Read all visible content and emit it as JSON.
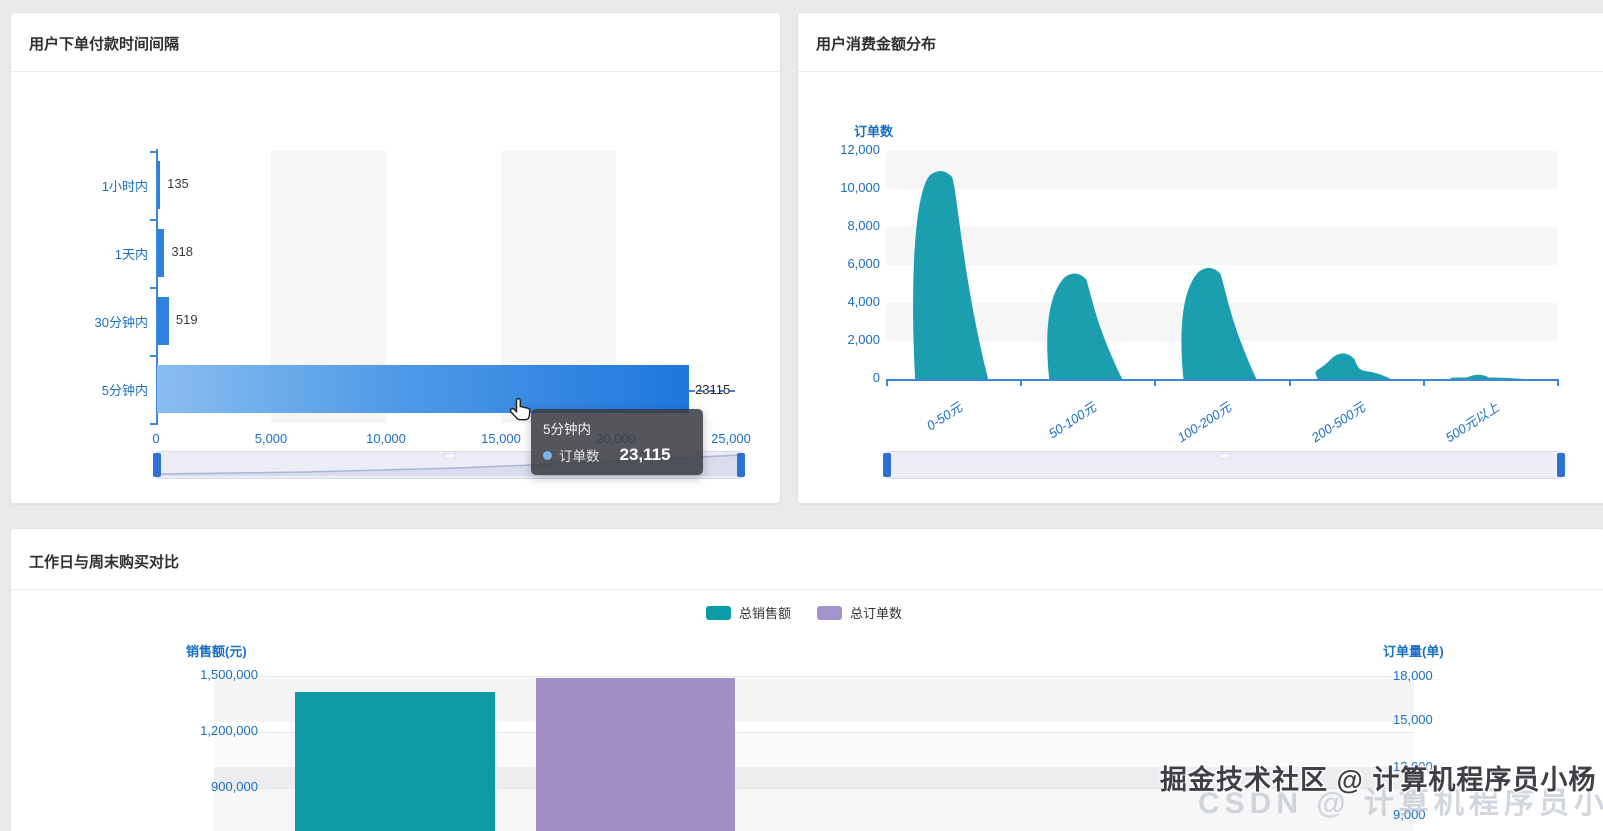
{
  "watermark": {
    "primary": "掘金技术社区 @ 计算机程序员小杨",
    "secondary": "CSDN @ 计算机程序员小杨"
  },
  "panels": {
    "interval": {
      "title": "用户下单付款时间间隔"
    },
    "amount": {
      "title": "用户消费金额分布"
    },
    "compare": {
      "title": "工作日与周末购买对比"
    }
  },
  "chart_data": [
    {
      "type": "bar",
      "orientation": "horizontal",
      "title": "用户下单付款时间间隔",
      "series_name": "订单数",
      "categories": [
        "1小时内",
        "1天内",
        "30分钟内",
        "5分钟内"
      ],
      "values": [
        135,
        318,
        519,
        23115
      ],
      "value_labels": [
        "135",
        "318",
        "519"
      ],
      "markline_label": "23115",
      "xlim": [
        0,
        25000
      ],
      "x_ticks": [
        "0",
        "5,000",
        "10,000",
        "15,000",
        "20,000",
        "25,000"
      ],
      "grid": "alternating vertical split bands",
      "bar_color": "#2f83de",
      "bar_gradient": [
        "#8abdf0",
        "#1e77dd"
      ],
      "axis_label_color": "#1a6fc4",
      "tooltip": {
        "category": "5分钟内",
        "series": "订单数",
        "value_display": "23,115"
      },
      "datazoom": true
    },
    {
      "type": "pictorialBar",
      "title": "用户消费金额分布",
      "ylabel": "订单数",
      "categories": [
        "0-50元",
        "50-100元",
        "100-200元",
        "200-500元",
        "500元以上"
      ],
      "values": [
        11000,
        5600,
        5900,
        1400,
        160
      ],
      "ylim": [
        0,
        12000
      ],
      "y_ticks": [
        "12,000",
        "10,000",
        "8,000",
        "6,000",
        "4,000",
        "2,000",
        "0"
      ],
      "grid": "alternating horizontal split bands",
      "color": "#1b9fae",
      "axis_label_color": "#1a6fc4",
      "datazoom": true
    },
    {
      "type": "bar",
      "dual_axis": true,
      "title": "工作日与周末购买对比",
      "legend": [
        {
          "label": "总销售额",
          "color": "#0d9ba7"
        },
        {
          "label": "总订单数",
          "color": "#a293cc"
        }
      ],
      "left_axis": {
        "name": "销售额(元)",
        "ticks": [
          "1,500,000",
          "1,200,000",
          "900,000"
        ]
      },
      "right_axis": {
        "name": "订单量(单)",
        "ticks": [
          "18,000",
          "15,000",
          "12,000",
          "9,000"
        ]
      },
      "series": [
        {
          "name": "总销售额",
          "axis": "left",
          "color": "#0b9aa6",
          "visible_values": [
            1415000
          ]
        },
        {
          "name": "总订单数",
          "axis": "right",
          "color": "#a18fc9",
          "visible_values": [
            17900
          ]
        }
      ]
    }
  ]
}
